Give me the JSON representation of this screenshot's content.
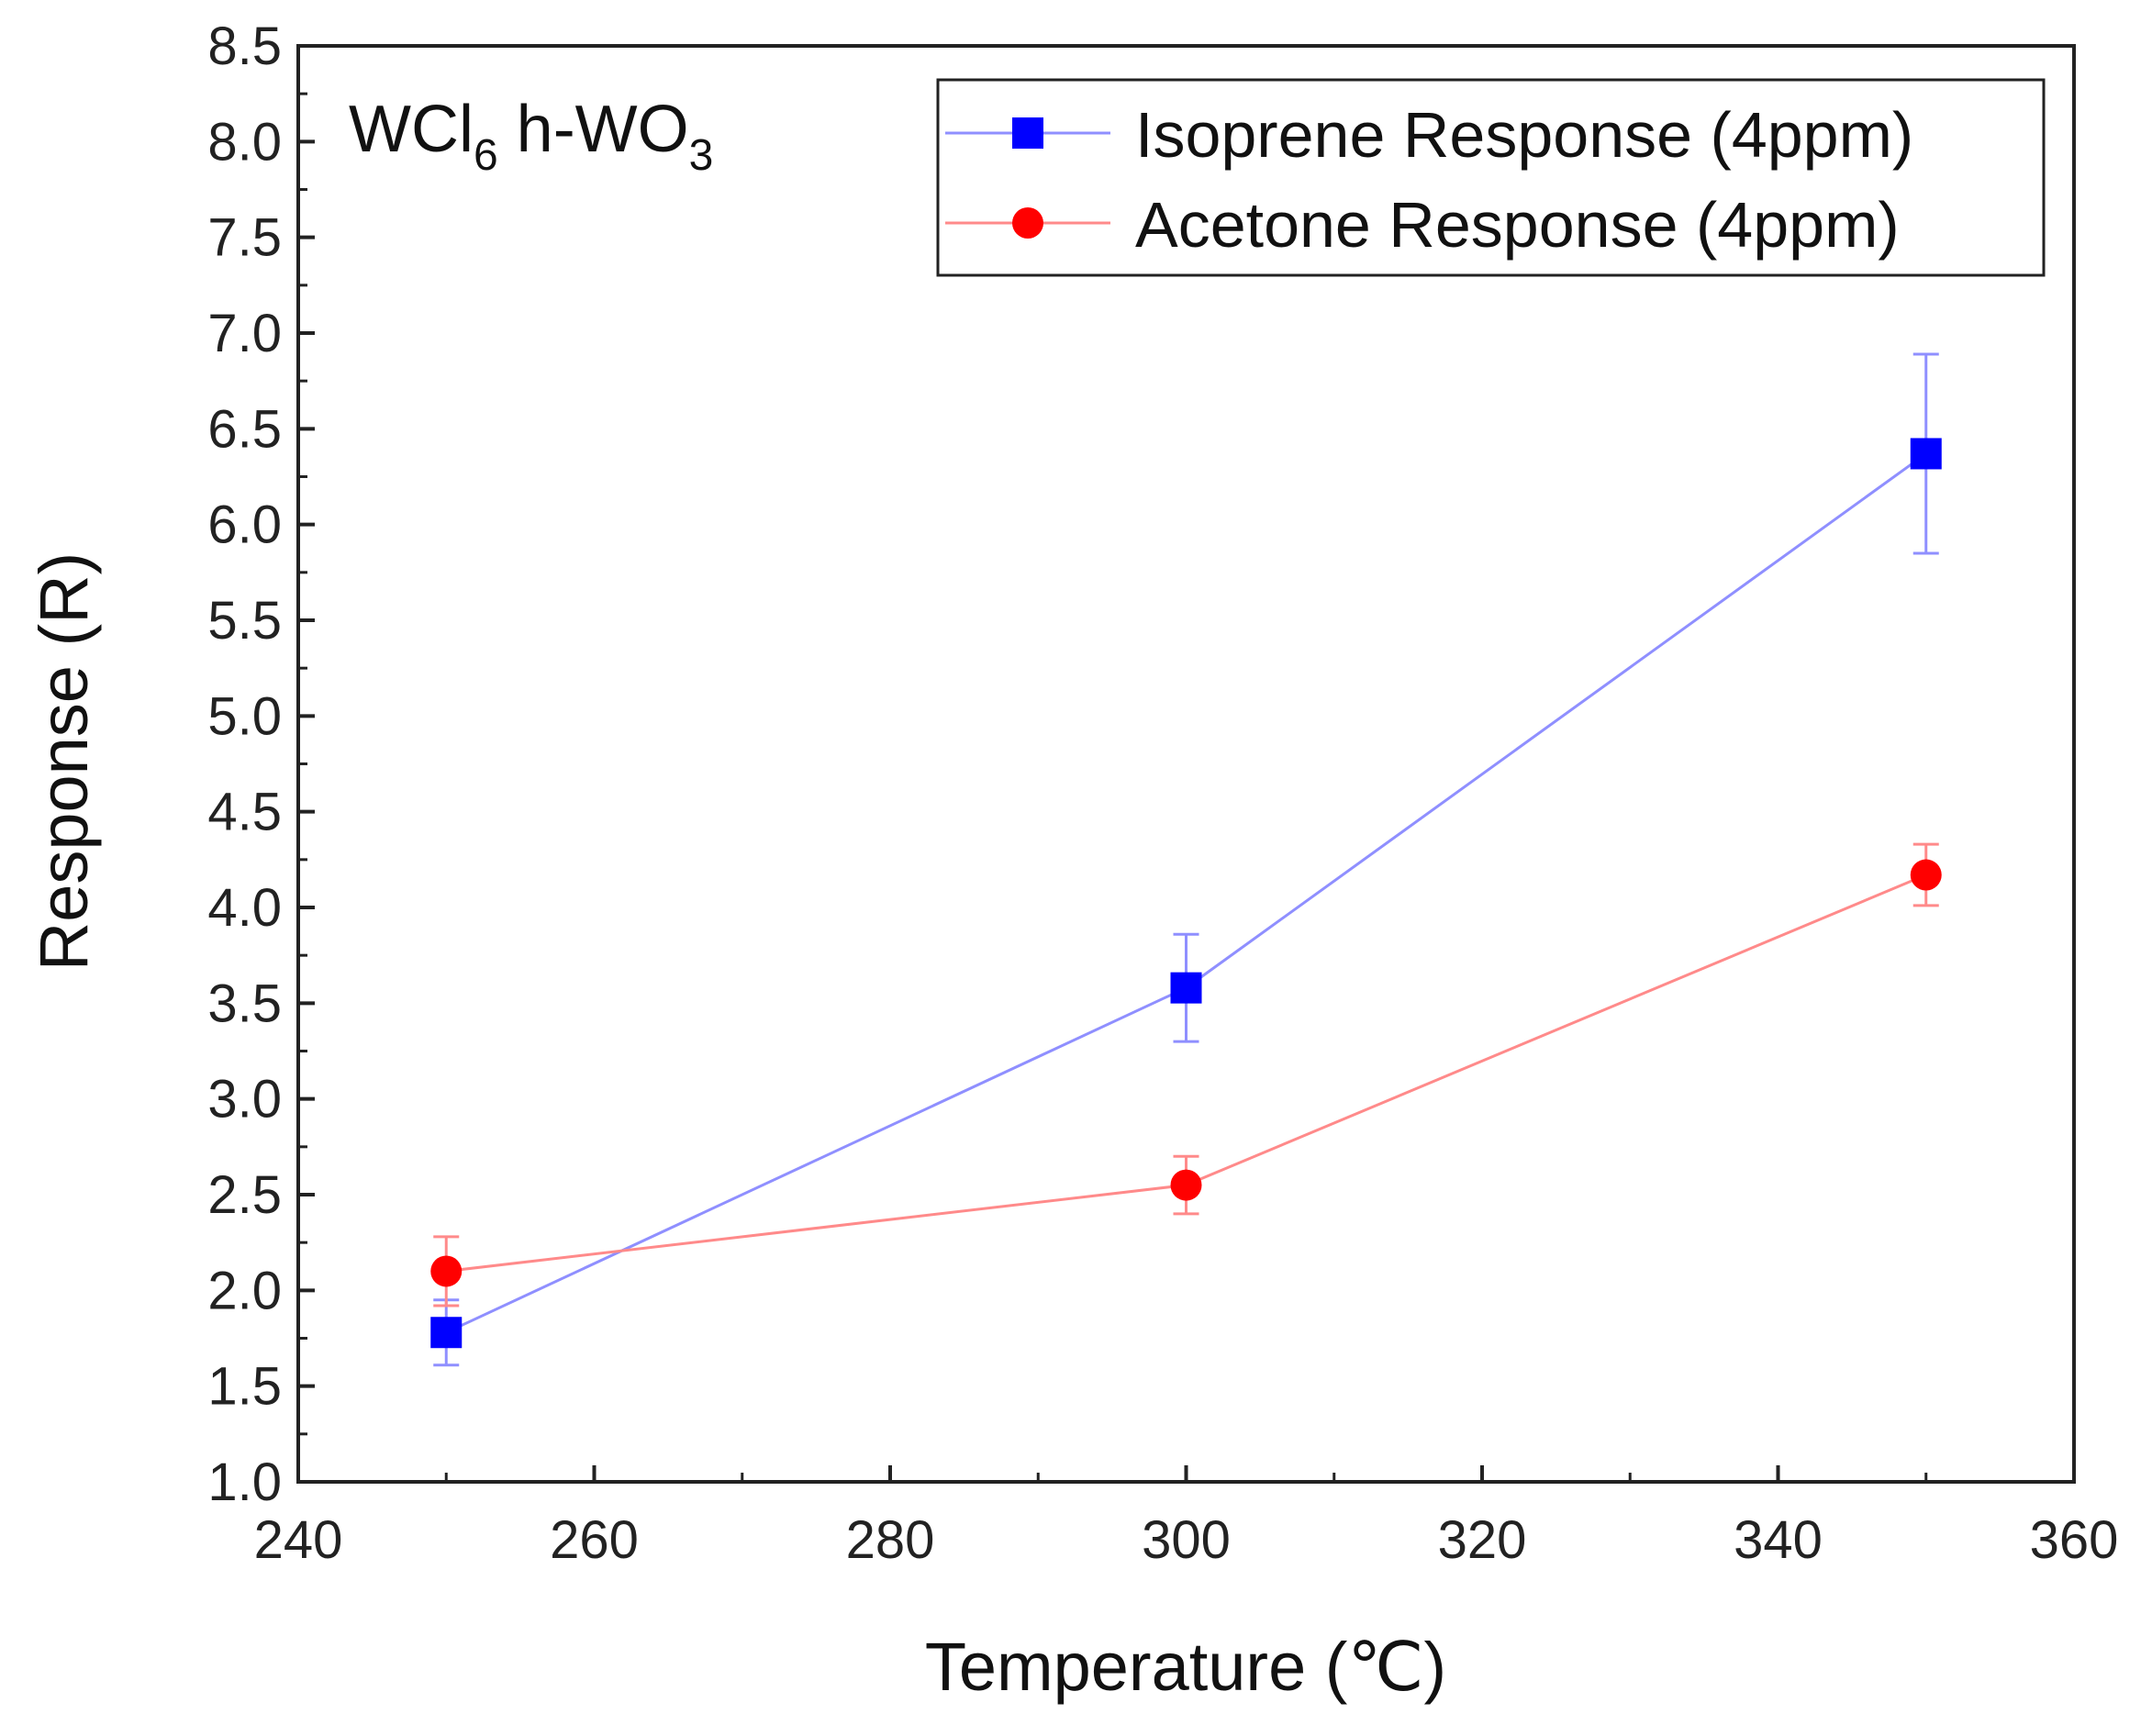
{
  "chart_data": {
    "type": "line",
    "title": "",
    "annotation": {
      "main": "WCl",
      "sub1": "6",
      "mid": " h-WO",
      "sub2": "3"
    },
    "xlabel": "Temperature (℃)",
    "ylabel": "Response (R)",
    "xlim": [
      240,
      360
    ],
    "ylim": [
      1.0,
      8.5
    ],
    "x_ticks": [
      240,
      260,
      280,
      300,
      320,
      340,
      360
    ],
    "y_ticks": [
      1.0,
      1.5,
      2.0,
      2.5,
      3.0,
      3.5,
      4.0,
      4.5,
      5.0,
      5.5,
      6.0,
      6.5,
      7.0,
      7.5,
      8.0,
      8.5
    ],
    "x_tick_labels": [
      "240",
      "260",
      "280",
      "300",
      "320",
      "340",
      "360"
    ],
    "y_tick_labels": [
      "1.0",
      "1.5",
      "2.0",
      "2.5",
      "3.0",
      "3.5",
      "4.0",
      "4.5",
      "5.0",
      "5.5",
      "6.0",
      "6.5",
      "7.0",
      "7.5",
      "8.0",
      "8.5"
    ],
    "legend_position": "top-right",
    "series": [
      {
        "name": "Isoprene Response (4ppm)",
        "marker": "square",
        "color": "#0000ff",
        "line_color": "#8f8fff",
        "x": [
          250,
          300,
          350
        ],
        "y": [
          1.78,
          3.58,
          6.37
        ],
        "error": [
          0.17,
          0.28,
          0.52
        ]
      },
      {
        "name": "Acetone Response (4ppm)",
        "marker": "circle",
        "color": "#ff0000",
        "line_color": "#ff8a8a",
        "x": [
          250,
          300,
          350
        ],
        "y": [
          2.1,
          2.55,
          4.17
        ],
        "error": [
          0.18,
          0.15,
          0.16
        ]
      }
    ]
  }
}
